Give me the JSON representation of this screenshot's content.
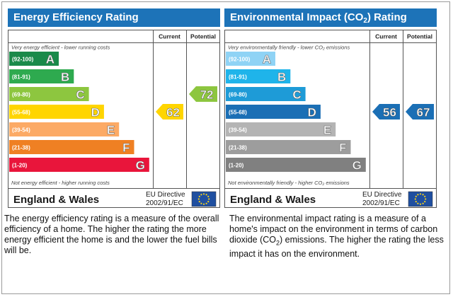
{
  "colors": {
    "title_bar": "#1d73b8",
    "eu_flag": "#1f4fa0",
    "eu_stars": "#f7d117",
    "energy_bands": [
      "#1a8a4a",
      "#2eaa4f",
      "#8dc63f",
      "#ffd500",
      "#fcaa65",
      "#ef8023",
      "#e9153b"
    ],
    "environment_bands": [
      "#8fd3f5",
      "#1fb4ea",
      "#1e9bd7",
      "#1b6fb5",
      "#b4b4b4",
      "#9d9d9d",
      "#808080"
    ]
  },
  "chart_data": [
    {
      "type": "bar",
      "title": "Energy Efficiency Rating",
      "title_sub": "",
      "title_after": "",
      "column_headers": [
        "Current",
        "Potential"
      ],
      "top_note": "Very energy efficient - lower running costs",
      "bottom_note": "Not energy efficient - higher running costs",
      "bands": [
        {
          "range": "(92-100)",
          "letter": "A"
        },
        {
          "range": "(81-91)",
          "letter": "B"
        },
        {
          "range": "(69-80)",
          "letter": "C"
        },
        {
          "range": "(55-68)",
          "letter": "D"
        },
        {
          "range": "(39-54)",
          "letter": "E"
        },
        {
          "range": "(21-38)",
          "letter": "F"
        },
        {
          "range": "(1-20)",
          "letter": "G"
        }
      ],
      "current": {
        "value": 62,
        "band": "D"
      },
      "potential": {
        "value": 72,
        "band": "C"
      },
      "footer_region": "England & Wales",
      "directive": [
        "EU Directive",
        "2002/91/EC"
      ]
    },
    {
      "type": "bar",
      "title": "Environmental Impact (CO",
      "title_sub": "2",
      "title_after": ") Rating",
      "column_headers": [
        "Current",
        "Potential"
      ],
      "top_note": "Very environmentally friendly - lower CO₂ emissions",
      "bottom_note": "Not environmentally friendly - higher CO₂ emissions",
      "bands": [
        {
          "range": "(92-100)",
          "letter": "A"
        },
        {
          "range": "(81-91)",
          "letter": "B"
        },
        {
          "range": "(69-80)",
          "letter": "C"
        },
        {
          "range": "(55-68)",
          "letter": "D"
        },
        {
          "range": "(39-54)",
          "letter": "E"
        },
        {
          "range": "(21-38)",
          "letter": "F"
        },
        {
          "range": "(1-20)",
          "letter": "G"
        }
      ],
      "current": {
        "value": 56,
        "band": "D"
      },
      "potential": {
        "value": 67,
        "band": "D"
      },
      "footer_region": "England & Wales",
      "directive": [
        "EU Directive",
        "2002/91/EC"
      ]
    }
  ],
  "descriptions": {
    "energy": "The energy efficiency rating is a measure of the overall efficiency of a home. The higher the rating the more energy efficient the home is and the lower the fuel bills will be.",
    "environment_before": "The environmental impact rating is a measure of a home's impact on the environment in terms of carbon dioxide (CO",
    "environment_sub": "2",
    "environment_after": ") emissions. The higher the rating the less impact it has on the environment."
  }
}
